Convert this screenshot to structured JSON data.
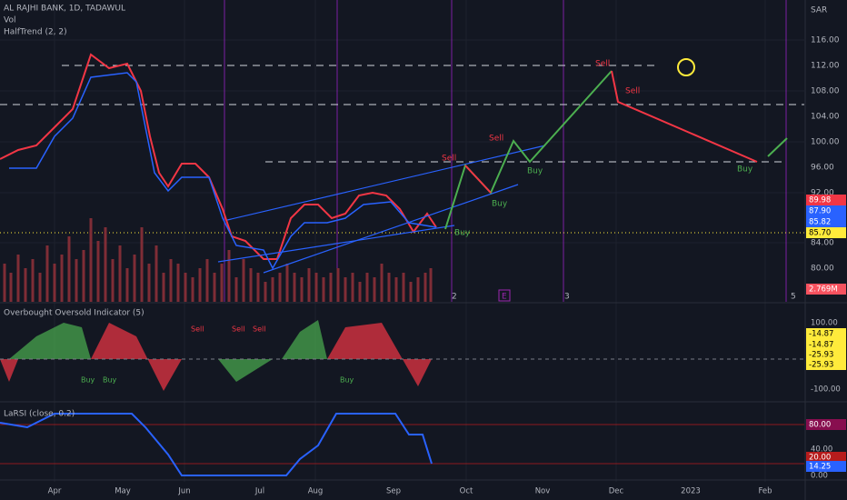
{
  "header": {
    "title": "AL RAJHI BANK, 1D, TADAWUL",
    "volume": "Vol",
    "indicator": "HalfTrend (2, 2)",
    "currency": "SAR"
  },
  "price_axis": [
    "116.00",
    "112.00",
    "108.00",
    "104.00",
    "100.00",
    "96.00",
    "92.00",
    "84.00",
    "80.00"
  ],
  "price_badges": [
    {
      "label": "89.98",
      "color": "#f23645"
    },
    {
      "label": "87.90",
      "color": "#2962ff"
    },
    {
      "label": "85.82",
      "color": "#2962ff"
    },
    {
      "label": "85.70",
      "color": "#ffeb3b"
    },
    {
      "label": "2.769M",
      "color": "#f7525f"
    }
  ],
  "annotations": {
    "sell": [
      "Sell",
      "Sell",
      "Sell",
      "Sell"
    ],
    "buy": [
      "Buy",
      "Buy",
      "Buy",
      "Buy"
    ]
  },
  "markers": [
    "2",
    "E",
    "3",
    "5"
  ],
  "oscillator": {
    "title": "Overbought Oversold Indicator (5)",
    "axis": [
      "100.00",
      "-100.00"
    ],
    "badges": [
      "-14.87",
      "-14.87",
      "-25.93",
      "-25.93"
    ],
    "sell": [
      "Sell",
      "Sell",
      "Sell"
    ],
    "buy": [
      "Buy",
      "Buy",
      "Buy"
    ]
  },
  "larsi": {
    "title": "LaRSI (close, 0.2)",
    "axis": [
      "40.00",
      "0.00"
    ],
    "badges": [
      {
        "label": "80.00",
        "color": "#880e4f"
      },
      {
        "label": "20.00",
        "color": "#b71c1c"
      },
      {
        "label": "14.25",
        "color": "#2962ff"
      }
    ]
  },
  "time_axis": [
    "Apr",
    "May",
    "Jun",
    "Jul",
    "Aug",
    "Sep",
    "Oct",
    "Nov",
    "Dec",
    "2023",
    "Feb"
  ]
}
